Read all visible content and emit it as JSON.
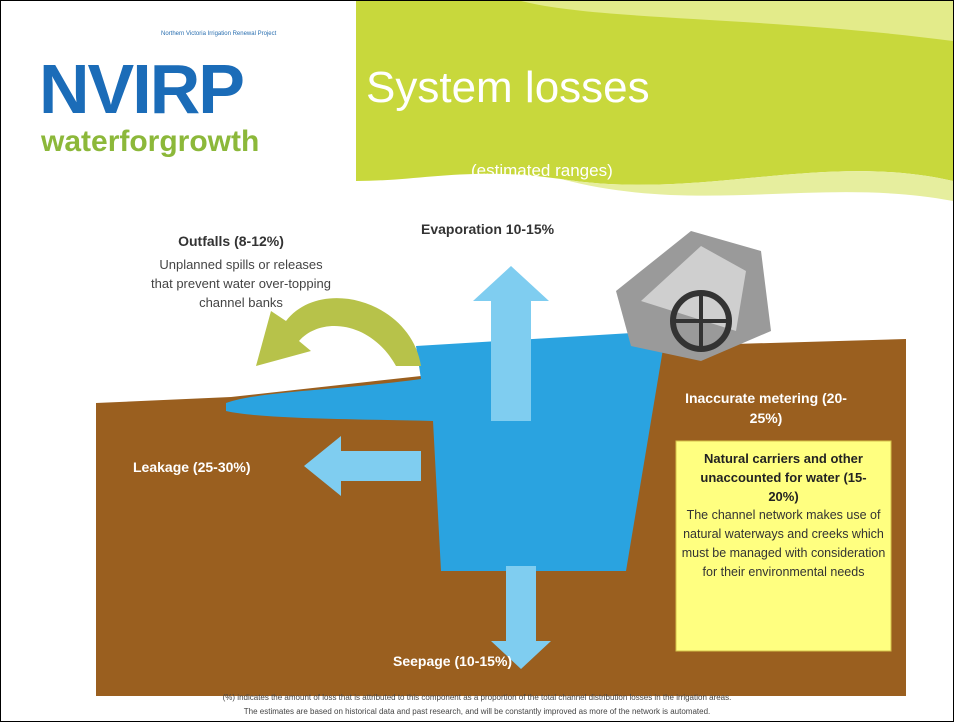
{
  "header": {
    "logo_caption": "Northern Victoria Irrigation Renewal Project",
    "logo": "NVIRP",
    "logo_tagline": "waterforgrowth",
    "title": "System losses",
    "subtitle": "(estimated ranges)"
  },
  "diagram": {
    "evaporation": "Evaporation 10-15%",
    "outfalls": {
      "label": "Outfalls (8-12%)",
      "text": "Unplanned spills or releases that prevent water over-topping channel banks"
    },
    "metering": "Inaccurate metering (20-25%)",
    "leakage": "Leakage (25-30%)",
    "natural_carriers": {
      "label": "Natural carriers and other unaccounted for water (15-20%)",
      "text": "The channel network makes use of natural waterways and creeks which must be managed with consideration for their environmental needs"
    },
    "seepage": "Seepage (10-15%)"
  },
  "footnote": [
    "(%) indicates the amount of loss that is attributed to this component as a proportion of the total channel distribution losses in the irrigation areas.",
    "The estimates are based on historical data and past research, and will be constantly improved as more of the network is automated."
  ]
}
